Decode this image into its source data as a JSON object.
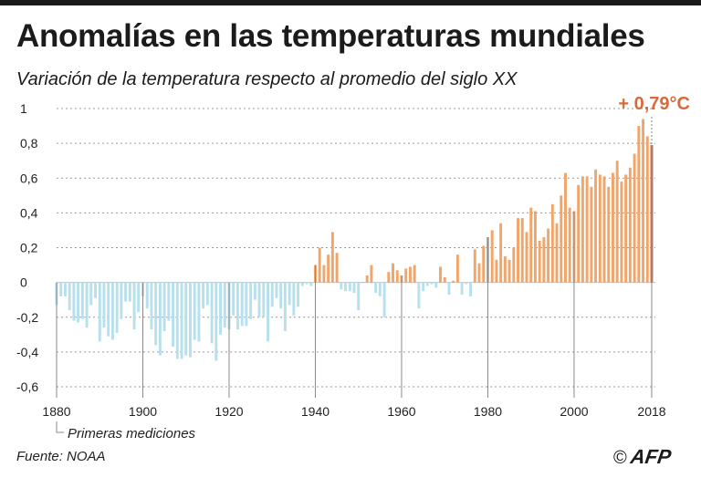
{
  "title": "Anomalías en las temperaturas mundiales",
  "subtitle": "Variación de la temperatura respecto al promedio del siglo XX",
  "source": "Fuente: NOAA",
  "credit": {
    "symbol": "©",
    "logo": "AFP"
  },
  "colors": {
    "positive": "#f0a66b",
    "negative": "#b7e0ec",
    "last": "#d8693a",
    "highlight_text": "#d8693a"
  },
  "chart_data": {
    "type": "bar",
    "title": "Anomalías en las temperaturas mundiales",
    "subtitle": "Variación de la temperatura respecto al promedio del siglo XX",
    "xlabel": "",
    "ylabel": "",
    "ylim": [
      -0.6,
      1
    ],
    "x_ticks": [
      "1880",
      "1900",
      "1920",
      "1940",
      "1960",
      "1980",
      "2000",
      "2018"
    ],
    "y_ticks": [
      "1",
      "0,8",
      "0,6",
      "0,4",
      "0,2",
      "0",
      "-0,2",
      "-0,4",
      "-0,6"
    ],
    "annotation": "+ 0,79°C",
    "baseline_note": "Primeras mediciones",
    "grid": true,
    "x": [
      1880,
      1881,
      1882,
      1883,
      1884,
      1885,
      1886,
      1887,
      1888,
      1889,
      1890,
      1891,
      1892,
      1893,
      1894,
      1895,
      1896,
      1897,
      1898,
      1899,
      1900,
      1901,
      1902,
      1903,
      1904,
      1905,
      1906,
      1907,
      1908,
      1909,
      1910,
      1911,
      1912,
      1913,
      1914,
      1915,
      1916,
      1917,
      1918,
      1919,
      1920,
      1921,
      1922,
      1923,
      1924,
      1925,
      1926,
      1927,
      1928,
      1929,
      1930,
      1931,
      1932,
      1933,
      1934,
      1935,
      1936,
      1937,
      1938,
      1939,
      1940,
      1941,
      1942,
      1943,
      1944,
      1945,
      1946,
      1947,
      1948,
      1949,
      1950,
      1951,
      1952,
      1953,
      1954,
      1955,
      1956,
      1957,
      1958,
      1959,
      1960,
      1961,
      1962,
      1963,
      1964,
      1965,
      1966,
      1967,
      1968,
      1969,
      1970,
      1971,
      1972,
      1973,
      1974,
      1975,
      1976,
      1977,
      1978,
      1979,
      1980,
      1981,
      1982,
      1983,
      1984,
      1985,
      1986,
      1987,
      1988,
      1989,
      1990,
      1991,
      1992,
      1993,
      1994,
      1995,
      1996,
      1997,
      1998,
      1999,
      2000,
      2001,
      2002,
      2003,
      2004,
      2005,
      2006,
      2007,
      2008,
      2009,
      2010,
      2011,
      2012,
      2013,
      2014,
      2015,
      2016,
      2017,
      2018
    ],
    "values": [
      -0.13,
      -0.08,
      -0.08,
      -0.16,
      -0.22,
      -0.23,
      -0.21,
      -0.26,
      -0.13,
      -0.09,
      -0.34,
      -0.26,
      -0.31,
      -0.33,
      -0.29,
      -0.21,
      -0.11,
      -0.11,
      -0.27,
      -0.17,
      -0.08,
      -0.15,
      -0.27,
      -0.36,
      -0.42,
      -0.28,
      -0.22,
      -0.37,
      -0.44,
      -0.44,
      -0.42,
      -0.43,
      -0.33,
      -0.34,
      -0.15,
      -0.13,
      -0.35,
      -0.45,
      -0.3,
      -0.26,
      -0.27,
      -0.19,
      -0.27,
      -0.25,
      -0.25,
      -0.21,
      -0.1,
      -0.2,
      -0.2,
      -0.34,
      -0.14,
      -0.09,
      -0.15,
      -0.28,
      -0.13,
      -0.19,
      -0.14,
      -0.02,
      -0.01,
      -0.02,
      0.1,
      0.2,
      0.1,
      0.16,
      0.29,
      0.17,
      -0.04,
      -0.05,
      -0.05,
      -0.06,
      -0.16,
      0.0,
      0.04,
      0.1,
      -0.06,
      -0.08,
      -0.2,
      0.06,
      0.11,
      0.07,
      0.04,
      0.08,
      0.09,
      0.1,
      -0.15,
      -0.05,
      -0.02,
      -0.01,
      -0.03,
      0.09,
      0.03,
      -0.07,
      0.01,
      0.16,
      -0.07,
      -0.01,
      -0.08,
      0.19,
      0.11,
      0.21,
      0.26,
      0.3,
      0.13,
      0.34,
      0.15,
      0.13,
      0.2,
      0.37,
      0.37,
      0.29,
      0.43,
      0.41,
      0.24,
      0.26,
      0.31,
      0.45,
      0.34,
      0.5,
      0.63,
      0.43,
      0.41,
      0.56,
      0.61,
      0.61,
      0.55,
      0.65,
      0.62,
      0.61,
      0.55,
      0.63,
      0.7,
      0.58,
      0.62,
      0.66,
      0.74,
      0.9,
      0.94,
      0.84,
      0.79
    ]
  }
}
